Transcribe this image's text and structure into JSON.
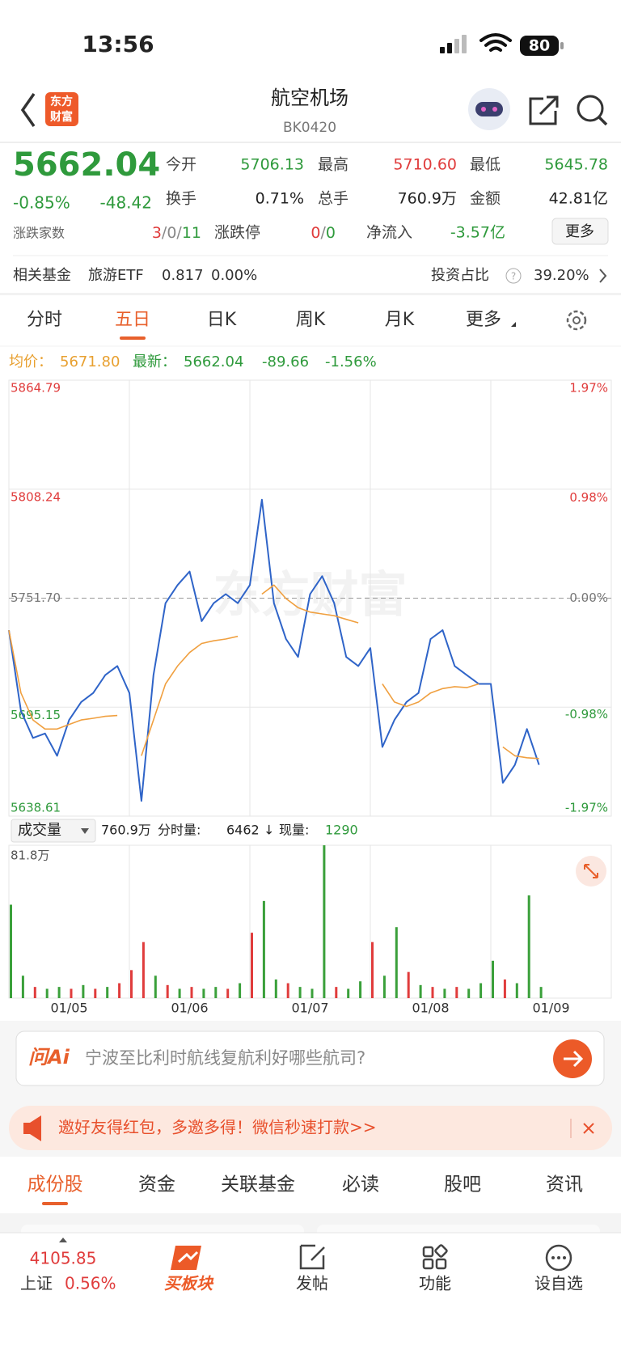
{
  "status_bar": {
    "time": "13:56",
    "battery": "80"
  },
  "header": {
    "logo_lines": [
      "东方",
      "财富"
    ],
    "title": "航空机场",
    "code": "BK0420"
  },
  "quote": {
    "price": "5662.04",
    "change_pct": "-0.85%",
    "change": "-48.42",
    "stats": [
      {
        "label": "今开",
        "value": "5706.13"
      },
      {
        "label": "最高",
        "value": "5710.60"
      },
      {
        "label": "最低",
        "value": "5645.78"
      },
      {
        "label": "换手",
        "value": "0.71%"
      },
      {
        "label": "总手",
        "value": "760.9万"
      },
      {
        "label": "金额",
        "value": "42.81亿"
      }
    ],
    "breadth_label": "涨跌家数",
    "breadth": [
      "3",
      "0",
      "11"
    ],
    "limit_label": "涨跌停",
    "limit": [
      "0",
      "0"
    ],
    "netflow_label": "净流入",
    "netflow": "-3.57亿",
    "more": "更多"
  },
  "fund": {
    "label": "相关基金",
    "name": "旅游ETF",
    "price": "0.817",
    "change": "0.00%",
    "ratio_label": "投资占比",
    "ratio": "39.20%"
  },
  "tabs": [
    "分时",
    "五日",
    "日K",
    "周K",
    "月K",
    "更多"
  ],
  "active_tab": 1,
  "chart_info": {
    "avg_label": "均价：",
    "avg": "5671.80",
    "latest_label": "最新：",
    "latest": "5662.04",
    "change": "-89.66",
    "change_pct": "-1.56%"
  },
  "chart_data": [
    {
      "type": "line",
      "watermark": "东方财富",
      "categories": [
        "01/05",
        "01/06",
        "01/07",
        "01/08",
        "01/09"
      ],
      "x": [
        0,
        0.1,
        0.2,
        0.3,
        0.4,
        0.5,
        0.6,
        0.7,
        0.8,
        0.9,
        1,
        1.1,
        1.2,
        1.3,
        1.4,
        1.5,
        1.6,
        1.7,
        1.8,
        1.9,
        2,
        2.1,
        2.2,
        2.3,
        2.4,
        2.5,
        2.6,
        2.7,
        2.8,
        2.9,
        3,
        3.1,
        3.2,
        3.3,
        3.4,
        3.5,
        3.6,
        3.7,
        3.8,
        3.9,
        4,
        4.1,
        4.2,
        4.3,
        4.4
      ],
      "series": [
        {
          "color": "#2f64c8",
          "values": [
            5735.1,
            5693.2,
            5679.2,
            5681.5,
            5669.9,
            5688.5,
            5697.8,
            5702.5,
            5711.8,
            5716.5,
            5702.5,
            5646.5,
            5711.8,
            5749.1,
            5758.5,
            5765.5,
            5739.8,
            5749.1,
            5753.8,
            5749.1,
            5758.5,
            5802.8,
            5749.1,
            5730.5,
            5721.2,
            5753.8,
            5763.1,
            5749.1,
            5721.2,
            5716.5,
            5725.8,
            5674.5,
            5688.5,
            5697.8,
            5702.5,
            5730.5,
            5735.1,
            5716.5,
            5711.8,
            5707.2,
            5707.2,
            5655.9,
            5665.2,
            5683.8,
            5665.2
          ]
        },
        {
          "color": "#f0a040",
          "values": [
            5735.1,
            5702.5,
            5688.5,
            5683.8,
            5683.8,
            5686.2,
            5688.5,
            5689.4,
            5690.4,
            5690.8,
            null,
            5669.9,
            5688.5,
            5707.2,
            5716.5,
            5723.5,
            5728.2,
            5729.6,
            5730.5,
            5731.9,
            null,
            5753.8,
            5758.5,
            5751.5,
            5746.8,
            5744.5,
            5743.5,
            5742.6,
            5740.7,
            5738.9,
            null,
            5707.2,
            5697.8,
            5695.5,
            5697.8,
            5702.5,
            5704.8,
            5705.8,
            5705.3,
            5707.2,
            null,
            5674.5,
            5669.9,
            5668.9,
            5668.5
          ]
        }
      ],
      "xlim": [
        0,
        5
      ],
      "ylim": [
        5638.61,
        5864.79
      ],
      "yticks": [
        5864.79,
        5808.24,
        {
          "value": 5751.7,
          "label": "5751.70"
        },
        5695.15,
        5638.61
      ],
      "dashed_tick": 2,
      "y2lim": [
        -1.97,
        1.97
      ],
      "y2ticks": [
        {
          "value": 1.97,
          "label": "1.97%"
        },
        {
          "value": 0.98,
          "label": "0.98%"
        },
        {
          "value": 0,
          "label": "0.00%"
        },
        {
          "value": -0.98,
          "label": "-0.98%"
        },
        {
          "value": -1.97,
          "label": "-1.97%"
        }
      ]
    },
    {
      "type": "bar",
      "x": [
        0,
        0.1,
        0.2,
        0.3,
        0.4,
        0.5,
        0.6,
        0.7,
        0.8,
        0.9,
        1,
        1.1,
        1.2,
        1.3,
        1.4,
        1.5,
        1.6,
        1.7,
        1.8,
        1.9,
        2,
        2.1,
        2.2,
        2.3,
        2.4,
        2.5,
        2.6,
        2.7,
        2.8,
        2.9,
        3,
        3.1,
        3.2,
        3.3,
        3.4,
        3.5,
        3.6,
        3.7,
        3.8,
        3.9,
        4,
        4.1,
        4.2,
        4.3,
        4.4
      ],
      "values": [
        50,
        12,
        6,
        5,
        6,
        5,
        7,
        5,
        6,
        8,
        15,
        30,
        12,
        7,
        5,
        6,
        5,
        6,
        5,
        8,
        35,
        52,
        10,
        8,
        6,
        5,
        81.8,
        6,
        5,
        9,
        30,
        12,
        38,
        14,
        7,
        6,
        5,
        6,
        5,
        8,
        20,
        10,
        8,
        55,
        6
      ],
      "colors": [
        "#3aa03a",
        "#3aa03a",
        "#e03c3c",
        "#3aa03a",
        "#3aa03a",
        "#e03c3c",
        "#3aa03a",
        "#e03c3c",
        "#3aa03a",
        "#e03c3c",
        "#e03c3c",
        "#e03c3c",
        "#3aa03a",
        "#e03c3c",
        "#3aa03a",
        "#e03c3c",
        "#3aa03a",
        "#3aa03a",
        "#e03c3c",
        "#3aa03a",
        "#e03c3c",
        "#3aa03a",
        "#3aa03a",
        "#e03c3c",
        "#3aa03a",
        "#3aa03a",
        "#3aa03a",
        "#e03c3c",
        "#3aa03a",
        "#3aa03a",
        "#e03c3c",
        "#3aa03a",
        "#3aa03a",
        "#e03c3c",
        "#3aa03a",
        "#e03c3c",
        "#3aa03a",
        "#e03c3c",
        "#3aa03a",
        "#3aa03a",
        "#3aa03a",
        "#e03c3c",
        "#3aa03a",
        "#3aa03a",
        "#3aa03a"
      ],
      "xlim": [
        0,
        5
      ],
      "ylim": [
        0,
        81.8
      ],
      "yticks": [
        {
          "value": 81.8,
          "label": "81.8万"
        }
      ]
    }
  ],
  "volume_info": {
    "selector": "成交量",
    "total": "760.9万",
    "period_label": "分时量:",
    "period": "6462",
    "direction": "↓",
    "now_label": "现量:",
    "now": "1290"
  },
  "ai": {
    "brand": "问Ai",
    "placeholder": "宁波至比利时航线复航利好哪些航司?"
  },
  "banner": {
    "text": "邀好友得红包，多邀多得！微信秒速打款>>"
  },
  "bottom_tabs": [
    "成份股",
    "资金",
    "关联基金",
    "必读",
    "股吧",
    "资讯"
  ],
  "nav": {
    "index_value": "4105.85",
    "index_name": "上证",
    "index_change": "0.56%",
    "items": [
      "买板块",
      "发帖",
      "功能",
      "设自选"
    ]
  }
}
